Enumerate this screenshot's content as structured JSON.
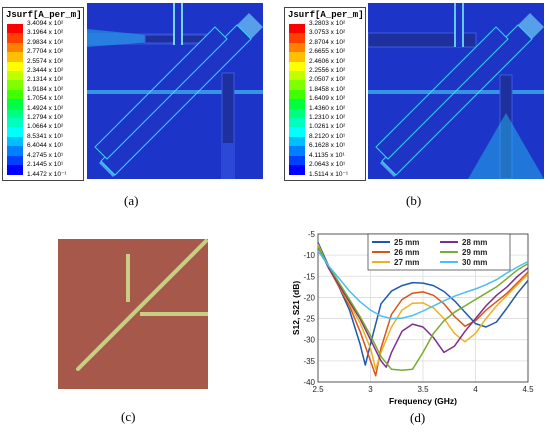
{
  "panel_a": {
    "legend_title": "Jsurf[A_per_m]",
    "legend_values": [
      "3.4094 x 10²",
      "3.1964 x 10²",
      "2.9834 x 10²",
      "2.7704 x 10²",
      "2.5574 x 10²",
      "2.3444 x 10²",
      "2.1314 x 10²",
      "1.9184 x 10²",
      "1.7054 x 10²",
      "1.4924 x 10²",
      "1.2794 x 10²",
      "1.0664 x 10²",
      "8.5341 x 10¹",
      "6.4044 x 10¹",
      "4.2745 x 10¹",
      "2.1445 x 10¹",
      "1.4472 x 10⁻¹"
    ],
    "caption": "(a)"
  },
  "panel_b": {
    "legend_title": "Jsurf[A_per_m]",
    "legend_values": [
      "3.2803 x 10²",
      "3.0753 x 10²",
      "2.8704 x 10²",
      "2.6655 x 10²",
      "2.4606 x 10²",
      "2.2556 x 10²",
      "2.0507 x 10²",
      "1.8458 x 10²",
      "1.6409 x 10²",
      "1.4360 x 10²",
      "1.2310 x 10²",
      "1.0261 x 10²",
      "8.2120 x 10¹",
      "6.1628 x 10¹",
      "4.1135 x 10¹",
      "2.0643 x 10¹",
      "1.5114 x 10⁻¹"
    ],
    "caption": "(b)"
  },
  "panel_c": {
    "caption": "(c)"
  },
  "panel_d": {
    "caption": "(d)"
  },
  "legend_colors": [
    "#ff0000",
    "#ff4000",
    "#ff8000",
    "#ffbf00",
    "#ffff00",
    "#bfff00",
    "#80ff00",
    "#40ff00",
    "#00ff40",
    "#00ff80",
    "#00ffbf",
    "#00ffff",
    "#00bfff",
    "#0080ff",
    "#0040ff",
    "#0000ff"
  ],
  "chart_data": {
    "type": "line",
    "xlabel": "Frequency (GHz)",
    "ylabel": "S12, S21 (dB)",
    "xlim": [
      2.5,
      4.5
    ],
    "ylim": [
      -40,
      -5
    ],
    "xticks": [
      "2.5",
      "3",
      "3.5",
      "4",
      "4.5"
    ],
    "yticks": [
      "-40",
      "-35",
      "-30",
      "-25",
      "-20",
      "-15",
      "-10",
      "-5"
    ],
    "grid": true,
    "legend_position": "top",
    "series": [
      {
        "name": "25 mm",
        "color": "#1f5aa8",
        "x": [
          2.5,
          2.6,
          2.7,
          2.8,
          2.9,
          2.95,
          3.0,
          3.1,
          3.2,
          3.3,
          3.4,
          3.5,
          3.6,
          3.7,
          3.8,
          3.9,
          4.0,
          4.1,
          4.2,
          4.3,
          4.4,
          4.5
        ],
        "y": [
          -7,
          -12.5,
          -17.5,
          -23,
          -31,
          -36,
          -31,
          -21.5,
          -18.5,
          -17.2,
          -16.5,
          -16.6,
          -17.2,
          -18.6,
          -20.8,
          -23.5,
          -26.2,
          -27,
          -25.8,
          -22.5,
          -19,
          -16
        ]
      },
      {
        "name": "26 mm",
        "color": "#d9541a",
        "x": [
          2.5,
          2.6,
          2.7,
          2.8,
          2.9,
          3.0,
          3.05,
          3.1,
          3.2,
          3.3,
          3.4,
          3.5,
          3.6,
          3.7,
          3.8,
          3.9,
          4.0,
          4.1,
          4.2,
          4.3,
          4.4,
          4.5
        ],
        "y": [
          -7.5,
          -13,
          -17.5,
          -22,
          -28,
          -35,
          -38.5,
          -32,
          -24,
          -20.5,
          -19,
          -18.7,
          -19.5,
          -21.5,
          -24.5,
          -26.8,
          -25.5,
          -23,
          -21,
          -19,
          -16.5,
          -14
        ]
      },
      {
        "name": "27 mm",
        "color": "#edb020",
        "x": [
          2.5,
          2.6,
          2.7,
          2.8,
          2.9,
          3.0,
          3.05,
          3.1,
          3.2,
          3.3,
          3.4,
          3.5,
          3.6,
          3.7,
          3.8,
          3.9,
          4.0,
          4.1,
          4.2,
          4.3,
          4.4,
          4.5
        ],
        "y": [
          -7.5,
          -13,
          -17,
          -21.5,
          -26,
          -32,
          -37,
          -33,
          -27,
          -23,
          -21.4,
          -21.3,
          -22.5,
          -25,
          -28.5,
          -30.5,
          -28.5,
          -25,
          -22,
          -19.5,
          -17,
          -14.5
        ]
      },
      {
        "name": "28 mm",
        "color": "#7e2f8e",
        "x": [
          2.5,
          2.6,
          2.7,
          2.8,
          2.9,
          3.0,
          3.1,
          3.15,
          3.2,
          3.3,
          3.4,
          3.5,
          3.6,
          3.7,
          3.8,
          3.9,
          4.0,
          4.1,
          4.2,
          4.3,
          4.4,
          4.5
        ],
        "y": [
          -8,
          -13,
          -17,
          -21,
          -25,
          -30,
          -35,
          -36.5,
          -33,
          -28,
          -26.3,
          -27,
          -29.5,
          -33,
          -31.5,
          -28,
          -25,
          -22,
          -19.5,
          -17.5,
          -15,
          -13
        ]
      },
      {
        "name": "29 mm",
        "color": "#77ac30",
        "x": [
          2.5,
          2.6,
          2.7,
          2.8,
          2.9,
          3.0,
          3.1,
          3.2,
          3.3,
          3.4,
          3.5,
          3.6,
          3.7,
          3.8,
          3.9,
          4.0,
          4.1,
          4.2,
          4.3,
          4.4,
          4.5
        ],
        "y": [
          -8,
          -12.5,
          -16.5,
          -20.5,
          -24.5,
          -29,
          -34,
          -37,
          -37.2,
          -37,
          -33,
          -28.5,
          -25.5,
          -23.5,
          -22,
          -20.5,
          -19,
          -17.5,
          -15.5,
          -13.5,
          -12
        ]
      },
      {
        "name": "30 mm",
        "color": "#4dbeee",
        "x": [
          2.5,
          2.6,
          2.7,
          2.8,
          2.9,
          3.0,
          3.1,
          3.2,
          3.3,
          3.4,
          3.5,
          3.6,
          3.7,
          3.8,
          3.9,
          4.0,
          4.1,
          4.2,
          4.3,
          4.4,
          4.5
        ],
        "y": [
          -9,
          -12.5,
          -15.5,
          -18.5,
          -21,
          -23,
          -24.4,
          -25,
          -24.9,
          -24.3,
          -23.2,
          -22,
          -20.8,
          -19.7,
          -18.8,
          -18,
          -17,
          -15.8,
          -14.2,
          -12.8,
          -11.5
        ]
      }
    ]
  }
}
